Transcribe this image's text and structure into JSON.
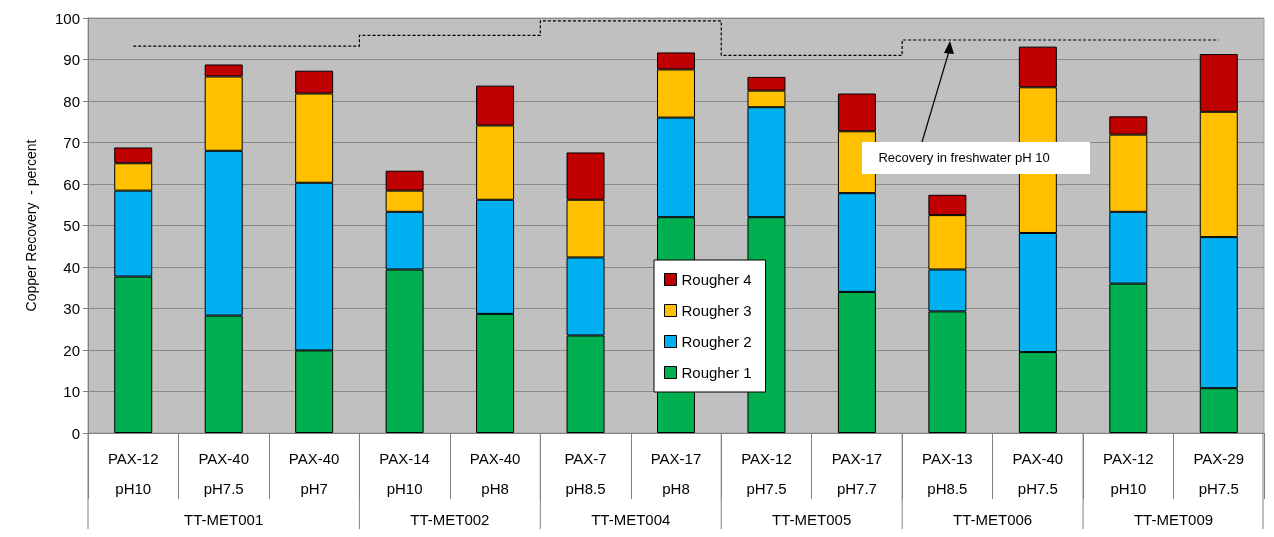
{
  "chart_data": {
    "type": "bar",
    "stacked": true,
    "ylabel": "Copper Recovery  - percent",
    "categories": [
      "PAX-12\npH10",
      "PAX-40\npH7.5",
      "PAX-40\npH7",
      "PAX-14\npH10",
      "PAX-40\npH8",
      "PAX-7\npH8.5",
      "PAX-17\npH8",
      "PAX-12\npH7.5",
      "PAX-17\npH7.7",
      "PAX-13\npH8.5",
      "PAX-40\npH7.5",
      "PAX-12\npH10",
      "PAX-29\npH7.5"
    ],
    "series": [
      {
        "name": "Rougher 1",
        "color": "#00b050",
        "values": [
          37.7,
          28.3,
          19.9,
          39.4,
          28.7,
          23.5,
          52,
          52,
          34,
          29.3,
          19.5,
          36,
          10.8
        ]
      },
      {
        "name": "Rougher 2",
        "color": "#00b0f0",
        "values": [
          20.7,
          39.7,
          40.4,
          13.9,
          27.5,
          18.8,
          24,
          26.5,
          23.8,
          10.1,
          28.7,
          17.3,
          36.4
        ]
      },
      {
        "name": "Rougher 3",
        "color": "#ffc000",
        "values": [
          6.6,
          17.9,
          21.5,
          5.1,
          17.9,
          13.9,
          11.6,
          4,
          14.9,
          13.1,
          35.1,
          18.6,
          30.2
        ]
      },
      {
        "name": "Rougher 4",
        "color": "#c00000",
        "values": [
          3.8,
          2.9,
          5.5,
          4.8,
          9.6,
          11.4,
          4.1,
          3.3,
          9.1,
          4.9,
          9.8,
          4.4,
          13.9
        ]
      },
      {
        "type": "step",
        "color": "#000000",
        "line_style": "dashed",
        "marker": "none",
        "values": [
          93.2,
          93.2,
          93.2,
          95.8,
          95.8,
          99.3,
          99.3,
          91,
          91,
          94.7,
          94.7,
          94.7,
          94.7
        ]
      }
    ],
    "ylim": [
      0,
      100
    ],
    "yticks": [
      0,
      10,
      20,
      30,
      40,
      50,
      60,
      70,
      80,
      90,
      100
    ],
    "grid": "y",
    "legend": "center",
    "annotations": [
      {
        "text": "Recovery in freshwater pH 10",
        "x": "PAX-13\npH8.5",
        "y": 94.7
      },
      "TT-MET001",
      "TT-MET002",
      "TT-MET004",
      "TT-MET005",
      "TT-MET006",
      "TT-MET009"
    ]
  }
}
